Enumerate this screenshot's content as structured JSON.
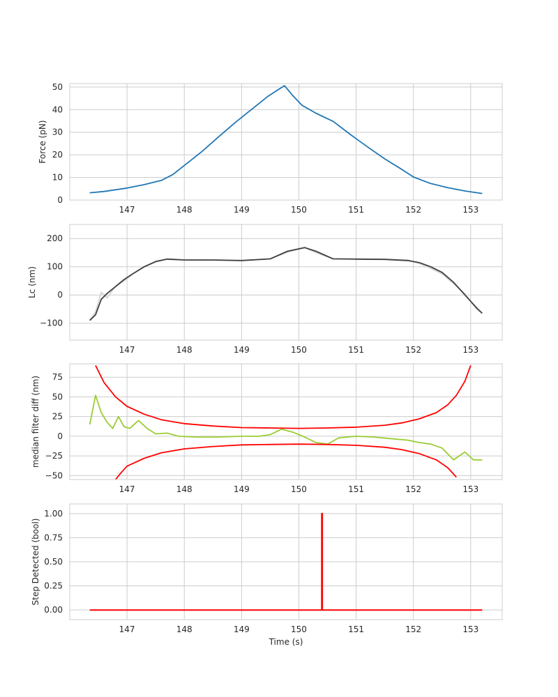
{
  "chart_data": [
    {
      "type": "line",
      "ylabel": "Force (pN)",
      "xlabel": "",
      "xlim": [
        146.0,
        153.55
      ],
      "ylim": [
        0,
        51.5
      ],
      "xticks": [
        147,
        148,
        149,
        150,
        151,
        152,
        153
      ],
      "yticks": [
        0,
        10,
        20,
        30,
        40,
        50
      ],
      "grid": true,
      "series": [
        {
          "color": "#1f77b4",
          "x": [
            146.35,
            146.6,
            147.0,
            147.3,
            147.6,
            147.8,
            148.0,
            148.3,
            148.6,
            148.9,
            149.2,
            149.45,
            149.6,
            149.75,
            149.9,
            150.05,
            150.3,
            150.6,
            150.9,
            151.2,
            151.5,
            151.8,
            152.0,
            152.3,
            152.6,
            152.9,
            153.2
          ],
          "y": [
            3.2,
            3.8,
            5.3,
            6.8,
            8.7,
            11.3,
            15.3,
            21.3,
            28.0,
            34.5,
            40.6,
            45.7,
            48.2,
            50.6,
            46.0,
            42.0,
            38.4,
            34.8,
            29.0,
            23.5,
            18.2,
            13.5,
            10.2,
            7.3,
            5.5,
            4.0,
            2.9
          ]
        }
      ]
    },
    {
      "type": "line",
      "ylabel": "Lc (nm)",
      "xlabel": "",
      "xlim": [
        146.0,
        153.55
      ],
      "ylim": [
        -160,
        250
      ],
      "xticks": [
        147,
        148,
        149,
        150,
        151,
        152,
        153
      ],
      "yticks": [
        -100,
        0,
        100,
        200
      ],
      "grid": true,
      "series": [
        {
          "color": "#d3d3d3",
          "x": [
            146.35,
            146.45,
            146.55,
            146.65,
            146.8,
            146.95,
            147.1,
            147.3,
            147.5,
            147.7,
            148.0,
            148.5,
            149.0,
            149.5,
            149.8,
            150.1,
            150.3,
            150.6,
            151.0,
            151.5,
            151.9,
            152.1,
            152.3,
            152.5,
            152.7,
            152.9,
            153.1,
            153.2
          ],
          "y": [
            -90,
            -60,
            10,
            -10,
            30,
            50,
            75,
            100,
            120,
            128,
            125,
            124,
            122,
            128,
            152,
            168,
            150,
            128,
            128,
            127,
            124,
            112,
            95,
            75,
            40,
            5,
            -50,
            -65
          ]
        },
        {
          "color": "#404040",
          "x": [
            146.35,
            146.45,
            146.55,
            146.65,
            146.8,
            146.95,
            147.1,
            147.3,
            147.5,
            147.7,
            148.0,
            148.5,
            149.0,
            149.5,
            149.8,
            150.1,
            150.3,
            150.6,
            151.0,
            151.5,
            151.9,
            152.1,
            152.3,
            152.5,
            152.7,
            152.9,
            153.1,
            153.2
          ],
          "y": [
            -90,
            -70,
            -15,
            5,
            30,
            55,
            75,
            100,
            118,
            127,
            124,
            124,
            122,
            128,
            155,
            168,
            155,
            128,
            127,
            126,
            122,
            115,
            100,
            80,
            45,
            0,
            -45,
            -65
          ]
        }
      ]
    },
    {
      "type": "line",
      "ylabel": "median filter diff (nm)",
      "xlabel": "",
      "xlim": [
        146.0,
        153.55
      ],
      "ylim": [
        -55,
        92
      ],
      "xticks": [
        147,
        148,
        149,
        150,
        151,
        152,
        153
      ],
      "yticks": [
        -50,
        -25,
        0,
        25,
        50,
        75
      ],
      "grid": true,
      "series": [
        {
          "color": "#9acd32",
          "x": [
            146.35,
            146.45,
            146.55,
            146.65,
            146.75,
            146.85,
            146.95,
            147.05,
            147.2,
            147.35,
            147.5,
            147.7,
            147.9,
            148.2,
            148.6,
            149.0,
            149.3,
            149.5,
            149.7,
            149.9,
            150.1,
            150.3,
            150.5,
            150.7,
            151.0,
            151.3,
            151.6,
            151.9,
            152.1,
            152.3,
            152.5,
            152.7,
            152.9,
            153.05,
            153.2
          ],
          "y": [
            15,
            52,
            30,
            18,
            10,
            25,
            12,
            10,
            20,
            10,
            3,
            4,
            0,
            -1,
            -1,
            0,
            0,
            2,
            9,
            5,
            -1,
            -8,
            -10,
            -2,
            0,
            -1,
            -3,
            -5,
            -8,
            -10,
            -15,
            -30,
            -20,
            -30,
            -30
          ]
        },
        {
          "color": "#ff0000",
          "x": [
            146.45,
            146.6,
            146.8,
            147.0,
            147.3,
            147.6,
            148.0,
            148.5,
            149.0,
            149.5,
            150.0,
            150.5,
            151.0,
            151.5,
            151.8,
            152.1,
            152.4,
            152.6,
            152.75,
            152.9,
            153.0
          ],
          "y": [
            90,
            68,
            50,
            38,
            28,
            21,
            16,
            13,
            11,
            10.5,
            10,
            10.5,
            11.5,
            14,
            17,
            22,
            30,
            40,
            52,
            70,
            90
          ]
        },
        {
          "color": "#ff0000",
          "x": [
            146.8,
            146.9,
            147.0,
            147.3,
            147.6,
            148.0,
            148.5,
            149.0,
            149.5,
            150.0,
            150.5,
            151.0,
            151.5,
            151.8,
            152.1,
            152.4,
            152.6,
            152.75
          ],
          "y": [
            -55,
            -46,
            -38,
            -28,
            -21,
            -16,
            -13,
            -11,
            -10.5,
            -10,
            -10.5,
            -11.5,
            -14,
            -17,
            -22,
            -30,
            -40,
            -52
          ]
        }
      ]
    },
    {
      "type": "line",
      "ylabel": "Step Detected (bool)",
      "xlabel": "Time (s)",
      "xlim": [
        146.0,
        153.55
      ],
      "ylim": [
        -0.1,
        1.1
      ],
      "xticks": [
        147,
        148,
        149,
        150,
        151,
        152,
        153
      ],
      "yticks": [
        0.0,
        0.25,
        0.5,
        0.75,
        1.0
      ],
      "ytick_labels": [
        "0.00",
        "0.25",
        "0.50",
        "0.75",
        "1.00"
      ],
      "grid": true,
      "series": [
        {
          "color": "#ff0000",
          "x": [
            146.35,
            150.4,
            150.4,
            150.41,
            150.41,
            153.2
          ],
          "y": [
            0,
            0,
            1,
            1,
            0,
            0
          ]
        }
      ]
    }
  ]
}
